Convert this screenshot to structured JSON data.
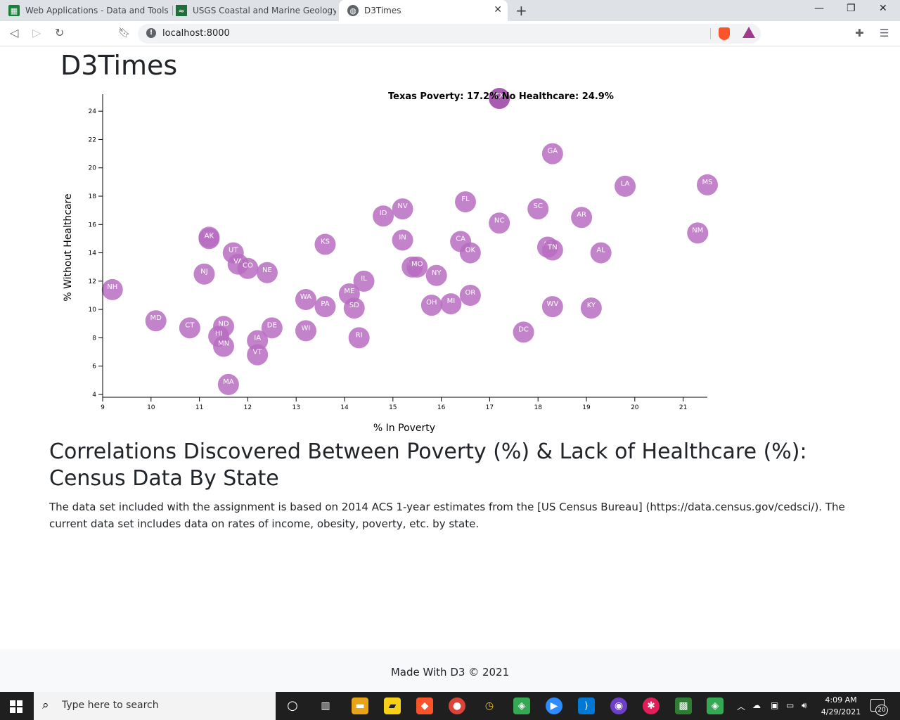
{
  "browser": {
    "tabs": [
      {
        "title": "Web Applications - Data and Tools",
        "icon": "spreadsheet-icon",
        "active": false
      },
      {
        "title": "USGS Coastal and Marine Geology Pro",
        "icon": "usgs-icon",
        "active": false
      },
      {
        "title": "D3Times",
        "icon": "globe-icon",
        "active": true
      }
    ],
    "url": "localhost:8000"
  },
  "page": {
    "title": "D3Times",
    "tooltip": "Texas Poverty: 17.2% No Healthcare: 24.9%",
    "section_title": "Correlations Discovered Between Poverty (%) & Lack of Healthcare (%): Census Data By State",
    "section_text": "The data set included with the assignment is based on 2014 ACS 1-year estimates from the [US Census Bureau] (https://data.census.gov/cedsci/). The current data set includes data on rates of income, obesity, poverty, etc. by state.",
    "footer": "Made With D3 © 2021"
  },
  "chart_data": {
    "type": "scatter",
    "xlabel": "% In Poverty",
    "ylabel": "% Without Healthcare",
    "xlim": [
      9,
      21.5
    ],
    "ylim": [
      3.8,
      25.2
    ],
    "xticks": [
      9,
      10,
      11,
      12,
      13,
      14,
      15,
      16,
      17,
      18,
      19,
      20,
      21
    ],
    "yticks": [
      4,
      6,
      8,
      10,
      12,
      14,
      16,
      18,
      20,
      22,
      24
    ],
    "point_color": "#b96dc1",
    "highlight_color": "#9a3ea5",
    "label_color": "#ffffff",
    "points": [
      {
        "label": "NH",
        "x": 9.2,
        "y": 11.4
      },
      {
        "label": "MD",
        "x": 10.1,
        "y": 9.2
      },
      {
        "label": "CT",
        "x": 10.8,
        "y": 8.7
      },
      {
        "label": "NJ",
        "x": 11.1,
        "y": 12.5
      },
      {
        "label": "WY",
        "x": 11.2,
        "y": 15.1
      },
      {
        "label": "AK",
        "x": 11.2,
        "y": 15.0
      },
      {
        "label": "ND",
        "x": 11.5,
        "y": 8.8
      },
      {
        "label": "HI",
        "x": 11.4,
        "y": 8.1
      },
      {
        "label": "MN",
        "x": 11.5,
        "y": 7.4
      },
      {
        "label": "UT",
        "x": 11.7,
        "y": 14.0
      },
      {
        "label": "VA",
        "x": 11.8,
        "y": 13.2
      },
      {
        "label": "CO",
        "x": 12.0,
        "y": 12.9
      },
      {
        "label": "MA",
        "x": 11.6,
        "y": 4.7
      },
      {
        "label": "IA",
        "x": 12.2,
        "y": 7.8
      },
      {
        "label": "VT",
        "x": 12.2,
        "y": 6.8
      },
      {
        "label": "NE",
        "x": 12.4,
        "y": 12.6
      },
      {
        "label": "DE",
        "x": 12.5,
        "y": 8.7
      },
      {
        "label": "WA",
        "x": 13.2,
        "y": 10.7
      },
      {
        "label": "WI",
        "x": 13.2,
        "y": 8.5
      },
      {
        "label": "KS",
        "x": 13.6,
        "y": 14.6
      },
      {
        "label": "PA",
        "x": 13.6,
        "y": 10.2
      },
      {
        "label": "ME",
        "x": 14.1,
        "y": 11.1
      },
      {
        "label": "SD",
        "x": 14.2,
        "y": 10.1
      },
      {
        "label": "RI",
        "x": 14.3,
        "y": 8.0
      },
      {
        "label": "IL",
        "x": 14.4,
        "y": 12.0
      },
      {
        "label": "ID",
        "x": 14.8,
        "y": 16.6
      },
      {
        "label": "NV",
        "x": 15.2,
        "y": 17.1
      },
      {
        "label": "IN",
        "x": 15.2,
        "y": 14.9
      },
      {
        "label": "MT",
        "x": 15.4,
        "y": 13.0
      },
      {
        "label": "MO",
        "x": 15.5,
        "y": 13.0
      },
      {
        "label": "NY",
        "x": 15.9,
        "y": 12.4
      },
      {
        "label": "OH",
        "x": 15.8,
        "y": 10.3
      },
      {
        "label": "MI",
        "x": 16.2,
        "y": 10.4
      },
      {
        "label": "FL",
        "x": 16.5,
        "y": 17.6
      },
      {
        "label": "CA",
        "x": 16.4,
        "y": 14.8
      },
      {
        "label": "OK",
        "x": 16.6,
        "y": 14.0
      },
      {
        "label": "OR",
        "x": 16.6,
        "y": 11.0
      },
      {
        "label": "TX",
        "x": 17.2,
        "y": 24.9
      },
      {
        "label": "NC",
        "x": 17.2,
        "y": 16.1
      },
      {
        "label": "DC",
        "x": 17.7,
        "y": 8.4
      },
      {
        "label": "SC",
        "x": 18.0,
        "y": 17.1
      },
      {
        "label": "AZ",
        "x": 18.2,
        "y": 14.4
      },
      {
        "label": "TN",
        "x": 18.3,
        "y": 14.2
      },
      {
        "label": "GA",
        "x": 18.3,
        "y": 21.0
      },
      {
        "label": "WV",
        "x": 18.3,
        "y": 10.2
      },
      {
        "label": "AR",
        "x": 18.9,
        "y": 16.5
      },
      {
        "label": "KY",
        "x": 19.1,
        "y": 10.1
      },
      {
        "label": "AL",
        "x": 19.3,
        "y": 14.0
      },
      {
        "label": "LA",
        "x": 19.8,
        "y": 18.7
      },
      {
        "label": "NM",
        "x": 21.3,
        "y": 15.4
      },
      {
        "label": "MS",
        "x": 21.5,
        "y": 18.8
      }
    ]
  },
  "taskbar": {
    "search_placeholder": "Type here to search",
    "time": "4:09 AM",
    "date": "4/29/2021",
    "notifications": "20"
  }
}
